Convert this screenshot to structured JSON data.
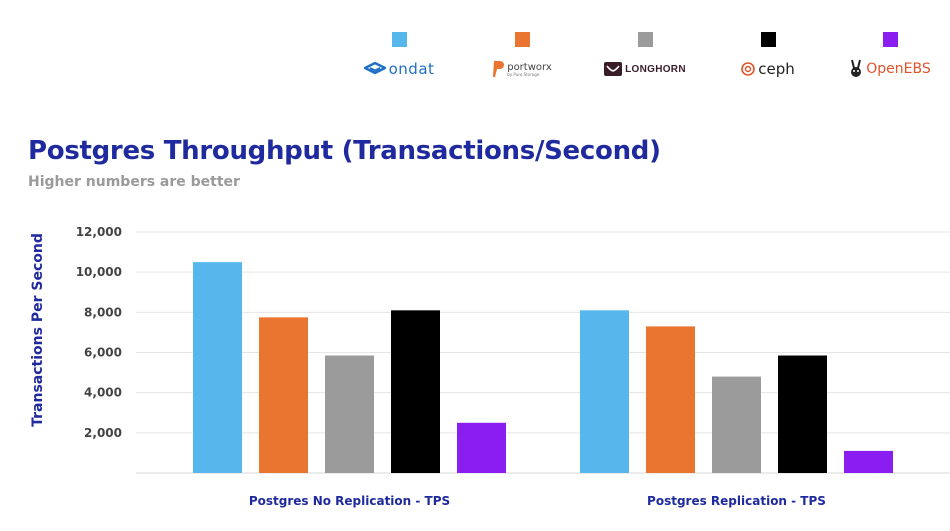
{
  "colors": {
    "ondat": "#55b7ec",
    "portworx": "#ea7531",
    "longhorn": "#9b9b9b",
    "ceph": "#000000",
    "openebs": "#8a1ef0",
    "title": "#1f2a9e",
    "gridline": "#e5e5e5"
  },
  "legend": [
    {
      "key": "ondat",
      "label": "ondat",
      "icon": "ondat-logo-icon"
    },
    {
      "key": "portworx",
      "label": "portworx",
      "sublabel": "by Pure Storage",
      "icon": "portworx-logo-icon"
    },
    {
      "key": "longhorn",
      "label": "LONGHORN",
      "icon": "longhorn-logo-icon"
    },
    {
      "key": "ceph",
      "label": "ceph",
      "icon": "ceph-logo-icon"
    },
    {
      "key": "openebs",
      "label": "OpenEBS",
      "icon": "openebs-logo-icon"
    }
  ],
  "chart_data": {
    "type": "bar",
    "title": "Postgres Throughput (Transactions/Second)",
    "subtitle": "Higher numbers are better",
    "ylabel": "Transactions Per Second",
    "xlabel": "",
    "categories": [
      "Postgres No Replication - TPS",
      "Postgres Replication - TPS"
    ],
    "series": [
      {
        "name": "ondat",
        "values": [
          10500,
          8100
        ]
      },
      {
        "name": "portworx",
        "values": [
          7750,
          7300
        ]
      },
      {
        "name": "LONGHORN",
        "values": [
          5850,
          4800
        ]
      },
      {
        "name": "ceph",
        "values": [
          8100,
          5850
        ]
      },
      {
        "name": "OpenEBS",
        "values": [
          2500,
          1100
        ]
      }
    ],
    "ylim": [
      0,
      12000
    ],
    "yticks": [
      "2,000",
      "4,000",
      "6,000",
      "8,000",
      "10,000",
      "12,000"
    ],
    "grid": true,
    "legend_position": "top"
  }
}
